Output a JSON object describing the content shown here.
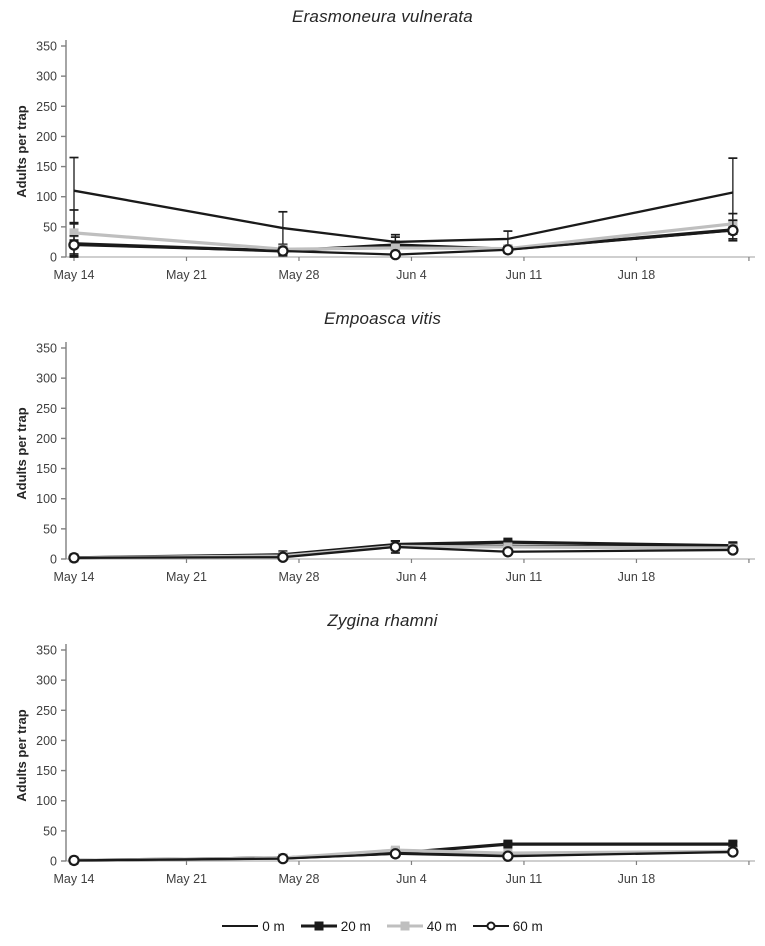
{
  "figure": {
    "colors": {
      "black": "#1a1a1a",
      "gray": "#bfbfbf",
      "axis_x": "#bfbfbf",
      "axis_y": "#7f7f7f",
      "tick_text": "#3f3f3f",
      "title_text": "#262626"
    },
    "legend": [
      {
        "label": "0 m",
        "marker": "none",
        "color": "#1a1a1a"
      },
      {
        "label": "20 m",
        "marker": "filled-square",
        "color": "#1a1a1a"
      },
      {
        "label": "40 m",
        "marker": "filled-square",
        "color": "#bfbfbf"
      },
      {
        "label": "60 m",
        "marker": "open-circle",
        "color": "#1a1a1a"
      }
    ]
  },
  "chart_data": [
    {
      "type": "line",
      "title": "Erasmoneura vulnerata",
      "ylabel": "Adults per trap",
      "ylim": [
        0,
        350
      ],
      "y_ticks": [
        0,
        50,
        100,
        150,
        200,
        250,
        300,
        350
      ],
      "grid": false,
      "x_days": [
        0,
        13,
        20,
        27,
        41
      ],
      "x_ticks": [
        {
          "day": 0,
          "label": "May 14"
        },
        {
          "day": 7,
          "label": "May 21"
        },
        {
          "day": 14,
          "label": "May 28"
        },
        {
          "day": 21,
          "label": "Jun 4"
        },
        {
          "day": 28,
          "label": "Jun 11"
        },
        {
          "day": 35,
          "label": "Jun 18"
        },
        {
          "day": 42,
          "label": ""
        }
      ],
      "series": [
        {
          "name": "0 m",
          "marker": "none",
          "color": "#1a1a1a",
          "values": [
            110,
            48,
            25,
            30,
            107
          ],
          "errors": [
            55,
            27,
            8,
            13,
            57
          ]
        },
        {
          "name": "20 m",
          "marker": "filled-square",
          "color": "#1a1a1a",
          "values": [
            22,
            10,
            20,
            13,
            45
          ],
          "errors": [
            35,
            8,
            17,
            4,
            15
          ]
        },
        {
          "name": "40 m",
          "marker": "filled-square",
          "color": "#bfbfbf",
          "values": [
            40,
            13,
            15,
            14,
            55
          ],
          "errors": [
            38,
            8,
            4,
            4,
            17
          ]
        },
        {
          "name": "60 m",
          "marker": "open-circle",
          "color": "#1a1a1a",
          "values": [
            20,
            10,
            4,
            12,
            44
          ],
          "errors": [
            15,
            6,
            3,
            5,
            17
          ]
        }
      ]
    },
    {
      "type": "line",
      "title": "Empoasca vitis",
      "ylabel": "Adults per trap",
      "ylim": [
        0,
        350
      ],
      "y_ticks": [
        0,
        50,
        100,
        150,
        200,
        250,
        300,
        350
      ],
      "grid": false,
      "x_days": [
        0,
        13,
        20,
        27,
        41
      ],
      "x_ticks": [
        {
          "day": 0,
          "label": "May 14"
        },
        {
          "day": 7,
          "label": "May 21"
        },
        {
          "day": 14,
          "label": "May 28"
        },
        {
          "day": 21,
          "label": "Jun 4"
        },
        {
          "day": 28,
          "label": "Jun 11"
        },
        {
          "day": 35,
          "label": "Jun 18"
        },
        {
          "day": 42,
          "label": ""
        }
      ],
      "series": [
        {
          "name": "0 m",
          "marker": "none",
          "color": "#1a1a1a",
          "values": [
            2,
            6,
            22,
            22,
            20
          ],
          "errors": [
            1,
            3,
            8,
            3,
            4
          ]
        },
        {
          "name": "20 m",
          "marker": "filled-square",
          "color": "#1a1a1a",
          "values": [
            2,
            7,
            24,
            28,
            22
          ],
          "errors": [
            1,
            4,
            6,
            3,
            5
          ]
        },
        {
          "name": "40 m",
          "marker": "filled-square",
          "color": "#bfbfbf",
          "values": [
            2,
            5,
            21,
            20,
            18
          ],
          "errors": [
            1,
            3,
            5,
            3,
            4
          ]
        },
        {
          "name": "60 m",
          "marker": "open-circle",
          "color": "#1a1a1a",
          "values": [
            2,
            3,
            20,
            12,
            15
          ],
          "errors": [
            1,
            4,
            10,
            3,
            5
          ]
        }
      ]
    },
    {
      "type": "line",
      "title": "Zygina rhamni",
      "ylabel": "Adults per trap",
      "ylim": [
        0,
        350
      ],
      "y_ticks": [
        0,
        50,
        100,
        150,
        200,
        250,
        300,
        350
      ],
      "grid": false,
      "x_days": [
        0,
        13,
        20,
        27,
        41
      ],
      "x_ticks": [
        {
          "day": 0,
          "label": "May 14"
        },
        {
          "day": 7,
          "label": "May 21"
        },
        {
          "day": 14,
          "label": "May 28"
        },
        {
          "day": 21,
          "label": "Jun 4"
        },
        {
          "day": 28,
          "label": "Jun 11"
        },
        {
          "day": 35,
          "label": "Jun 18"
        },
        {
          "day": 42,
          "label": ""
        }
      ],
      "series": [
        {
          "name": "0 m",
          "marker": "none",
          "color": "#1a1a1a",
          "values": [
            1,
            6,
            12,
            12,
            15
          ],
          "errors": [
            1,
            2,
            3,
            2,
            3
          ]
        },
        {
          "name": "20 m",
          "marker": "filled-square",
          "color": "#1a1a1a",
          "values": [
            1,
            5,
            13,
            28,
            28
          ],
          "errors": [
            1,
            2,
            4,
            3,
            4
          ]
        },
        {
          "name": "40 m",
          "marker": "filled-square",
          "color": "#bfbfbf",
          "values": [
            1,
            5,
            18,
            13,
            16
          ],
          "errors": [
            1,
            2,
            4,
            2,
            3
          ]
        },
        {
          "name": "60 m",
          "marker": "open-circle",
          "color": "#1a1a1a",
          "values": [
            1,
            4,
            12,
            8,
            15
          ],
          "errors": [
            1,
            2,
            3,
            2,
            3
          ]
        }
      ]
    }
  ]
}
